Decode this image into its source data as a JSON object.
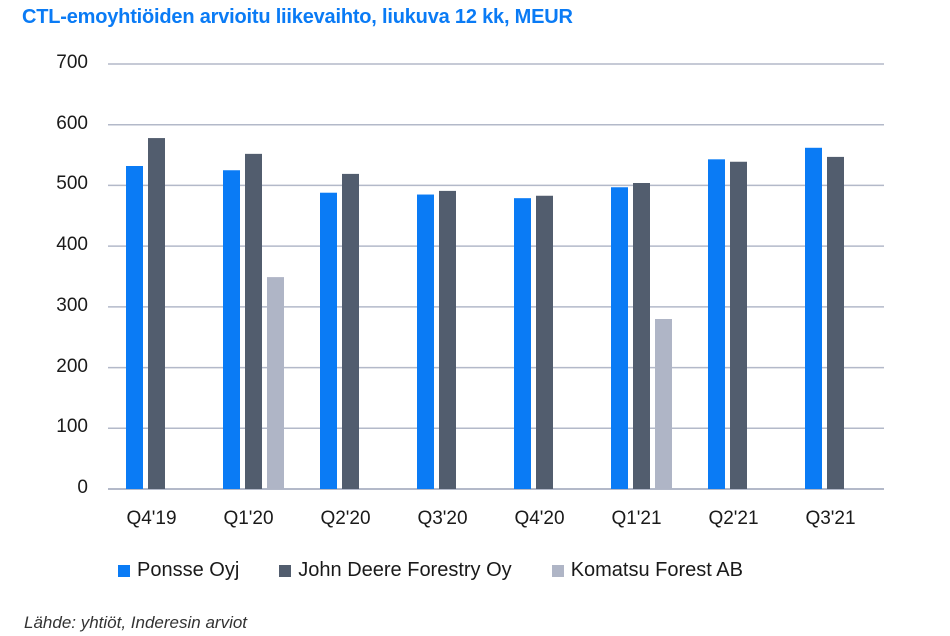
{
  "title": "CTL-emoyhtiöiden arvioitu liikevaihto, liukuva 12 kk, MEUR",
  "source": "Lähde: yhtiöt, Inderesin arviot",
  "colors": {
    "ponsse": "#0a7bf5",
    "john_deere": "#525d6e",
    "komatsu": "#afb5c6",
    "grid": "#b3b9c9",
    "title": "#0a7bf5"
  },
  "legend": [
    {
      "label": "Ponsse Oyj",
      "color": "#0a7bf5"
    },
    {
      "label": "John Deere Forestry Oy",
      "color": "#525d6e"
    },
    {
      "label": "Komatsu Forest AB",
      "color": "#afb5c6"
    }
  ],
  "chart_data": {
    "type": "bar",
    "title": "CTL-emoyhtiöiden arvioitu liikevaihto, liukuva 12 kk, MEUR",
    "xlabel": "",
    "ylabel": "",
    "ylim": [
      0,
      700
    ],
    "yticks": [
      0,
      100,
      200,
      300,
      400,
      500,
      600,
      700
    ],
    "grid": true,
    "legend_position": "bottom",
    "categories": [
      "Q4'19",
      "Q1'20",
      "Q2'20",
      "Q3'20",
      "Q4'20",
      "Q1'21",
      "Q2'21",
      "Q3'21"
    ],
    "series": [
      {
        "name": "Ponsse Oyj",
        "color": "#0a7bf5",
        "values": [
          532,
          525,
          488,
          485,
          479,
          497,
          543,
          562
        ]
      },
      {
        "name": "John Deere Forestry Oy",
        "color": "#525d6e",
        "values": [
          578,
          552,
          519,
          491,
          483,
          504,
          539,
          547
        ]
      },
      {
        "name": "Komatsu Forest AB",
        "color": "#afb5c6",
        "values": [
          null,
          349,
          null,
          null,
          null,
          280,
          null,
          null
        ]
      }
    ],
    "annotations": [
      "Lähde: yhtiöt, Inderesin arviot"
    ]
  }
}
